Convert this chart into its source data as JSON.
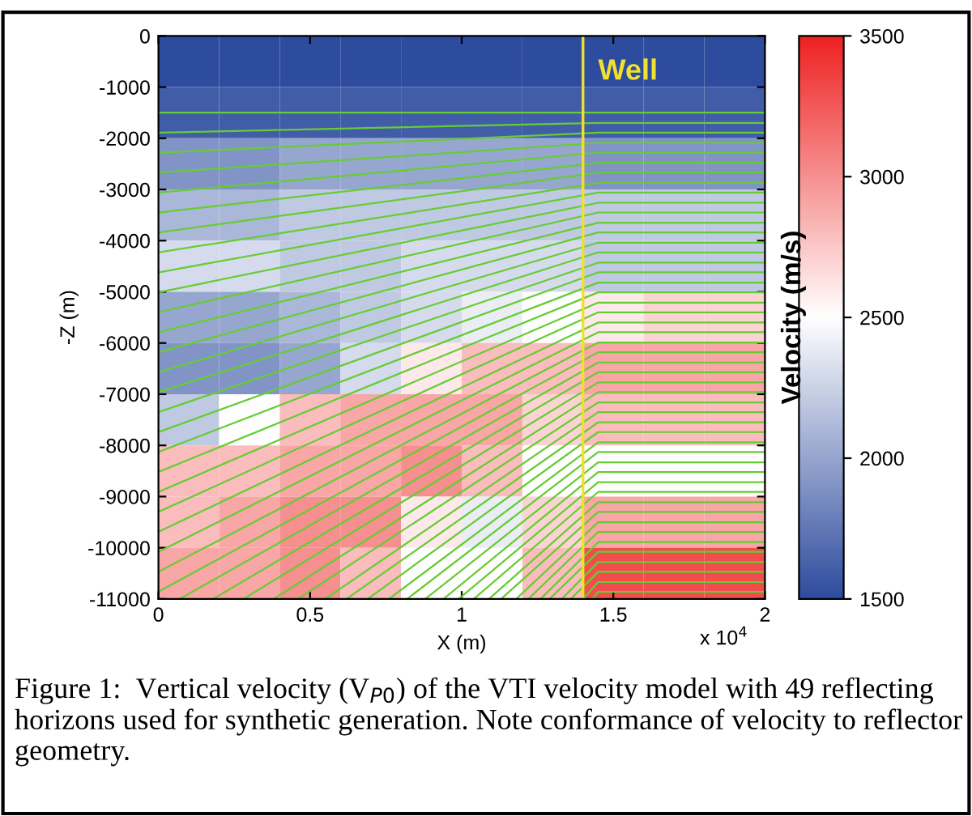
{
  "chart_data": {
    "type": "heatmap",
    "xlabel": "X (m)",
    "ylabel": "-Z (m)",
    "clabel": "Velocity (m/s)",
    "xlim": [
      0,
      2
    ],
    "ylim": [
      -11000,
      0
    ],
    "xticks": [
      0,
      0.5,
      1,
      1.5,
      2
    ],
    "yticks": [
      0,
      -1000,
      -2000,
      -3000,
      -4000,
      -5000,
      -6000,
      -7000,
      -8000,
      -9000,
      -10000,
      -11000
    ],
    "clim": [
      1500,
      3500
    ],
    "cticks": [
      1500,
      2000,
      2500,
      3000,
      3500
    ],
    "colors": [
      "#2e4c9e",
      "#ffffff",
      "#ee2222"
    ],
    "cells": [
      [
        1500,
        1500,
        1500,
        1500,
        1500,
        1500,
        1500,
        1500,
        1500,
        1500
      ],
      [
        1600,
        1600,
        1600,
        1600,
        1600,
        1600,
        1600,
        1600,
        1600,
        1600
      ],
      [
        1900,
        1900,
        2000,
        2000,
        2000,
        2000,
        2000,
        1900,
        1900,
        1900
      ],
      [
        2100,
        2100,
        2200,
        2200,
        2200,
        2200,
        2200,
        2200,
        2200,
        2200
      ],
      [
        2300,
        2300,
        2200,
        2200,
        2300,
        2300,
        2300,
        2200,
        2200,
        2200
      ],
      [
        2000,
        2000,
        2100,
        2200,
        2300,
        2400,
        2500,
        2600,
        2700,
        2700
      ],
      [
        1900,
        1900,
        2000,
        2300,
        2600,
        2800,
        2800,
        2900,
        2900,
        2900
      ],
      [
        2200,
        2500,
        2800,
        2900,
        2900,
        2900,
        2700,
        2800,
        2800,
        2800
      ],
      [
        2800,
        2800,
        2900,
        2900,
        3000,
        2800,
        2500,
        2500,
        2500,
        2500
      ],
      [
        2800,
        2900,
        3000,
        3000,
        2600,
        2400,
        2700,
        2900,
        2900,
        2900
      ],
      [
        2900,
        2900,
        3000,
        2800,
        2500,
        2500,
        2800,
        3300,
        3300,
        3300
      ]
    ],
    "ref_lines": [
      {
        "axis": "x",
        "value": 1.4,
        "label": "Well",
        "color": "#f0e030"
      }
    ],
    "annotations": [
      "x 10$^{4}$",
      "Figure 1:  Vertical velocity (V$_{P0}$) of the VTI velocity model with 49 reflecting horizons used for synthetic generation. Note conformance of velocity to reflector geometry."
    ],
    "series": [
      {
        "type": "line",
        "color": "#66cc33",
        "x": [
          0,
          1.45,
          2
        ],
        "values": [
          -1500,
          -1500,
          -1500
        ]
      },
      {
        "type": "line",
        "color": "#66cc33",
        "x": [
          0,
          1.45,
          2
        ],
        "values": [
          -1890,
          -1700,
          -1700
        ]
      },
      {
        "type": "line",
        "color": "#66cc33",
        "x": [
          0,
          1.45,
          2
        ],
        "values": [
          -2280,
          -1890,
          -1890
        ]
      },
      {
        "type": "line",
        "color": "#66cc33",
        "x": [
          0,
          1.45,
          2
        ],
        "values": [
          -2670,
          -2090,
          -2090
        ]
      },
      {
        "type": "line",
        "color": "#66cc33",
        "x": [
          0,
          1.45,
          2
        ],
        "values": [
          -3060,
          -2280,
          -2280
        ]
      },
      {
        "type": "line",
        "color": "#66cc33",
        "x": [
          0,
          1.45,
          2
        ],
        "values": [
          -3450,
          -2480,
          -2480
        ]
      },
      {
        "type": "line",
        "color": "#66cc33",
        "x": [
          0,
          1.45,
          2
        ],
        "values": [
          -3840,
          -2670,
          -2670
        ]
      },
      {
        "type": "line",
        "color": "#66cc33",
        "x": [
          0,
          1.45,
          2
        ],
        "values": [
          -4230,
          -2870,
          -2870
        ]
      },
      {
        "type": "line",
        "color": "#66cc33",
        "x": [
          0,
          1.45,
          2
        ],
        "values": [
          -4620,
          -3060,
          -3060
        ]
      },
      {
        "type": "line",
        "color": "#66cc33",
        "x": [
          0,
          1.45,
          2
        ],
        "values": [
          -5010,
          -3260,
          -3260
        ]
      },
      {
        "type": "line",
        "color": "#66cc33",
        "x": [
          0,
          1.45,
          2
        ],
        "values": [
          -5400,
          -3450,
          -3450
        ]
      },
      {
        "type": "line",
        "color": "#66cc33",
        "x": [
          0,
          1.45,
          2
        ],
        "values": [
          -5790,
          -3650,
          -3650
        ]
      },
      {
        "type": "line",
        "color": "#66cc33",
        "x": [
          0,
          1.45,
          2
        ],
        "values": [
          -6180,
          -3840,
          -3840
        ]
      },
      {
        "type": "line",
        "color": "#66cc33",
        "x": [
          0,
          1.45,
          2
        ],
        "values": [
          -6570,
          -4040,
          -4040
        ]
      },
      {
        "type": "line",
        "color": "#66cc33",
        "x": [
          0,
          1.45,
          2
        ],
        "values": [
          -6960,
          -4230,
          -4230
        ]
      },
      {
        "type": "line",
        "color": "#66cc33",
        "x": [
          0,
          1.45,
          2
        ],
        "values": [
          -7350,
          -4430,
          -4430
        ]
      },
      {
        "type": "line",
        "color": "#66cc33",
        "x": [
          0,
          1.45,
          2
        ],
        "values": [
          -7740,
          -4620,
          -4620
        ]
      },
      {
        "type": "line",
        "color": "#66cc33",
        "x": [
          0,
          1.45,
          2
        ],
        "values": [
          -8130,
          -4820,
          -4820
        ]
      },
      {
        "type": "line",
        "color": "#66cc33",
        "x": [
          0,
          1.45,
          2
        ],
        "values": [
          -8520,
          -5010,
          -5010
        ]
      },
      {
        "type": "line",
        "color": "#66cc33",
        "x": [
          0,
          1.45,
          2
        ],
        "values": [
          -8910,
          -5210,
          -5210
        ]
      },
      {
        "type": "line",
        "color": "#66cc33",
        "x": [
          0,
          1.45,
          2
        ],
        "values": [
          -9300,
          -5400,
          -5400
        ]
      },
      {
        "type": "line",
        "color": "#66cc33",
        "x": [
          0,
          1.45,
          2
        ],
        "values": [
          -9690,
          -5600,
          -5600
        ]
      },
      {
        "type": "line",
        "color": "#66cc33",
        "x": [
          0,
          1.45,
          2
        ],
        "values": [
          -10080,
          -5790,
          -5790
        ]
      },
      {
        "type": "line",
        "color": "#66cc33",
        "x": [
          0,
          1.45,
          2
        ],
        "values": [
          -10470,
          -5990,
          -5990
        ]
      },
      {
        "type": "line",
        "color": "#66cc33",
        "x": [
          0,
          1.45,
          2
        ],
        "values": [
          -10860,
          -6180,
          -6180
        ]
      },
      {
        "type": "line",
        "color": "#66cc33",
        "x": [
          0.07,
          1.45,
          2
        ],
        "values": [
          -11000,
          -6380,
          -6380
        ]
      },
      {
        "type": "line",
        "color": "#66cc33",
        "x": [
          0.18,
          1.45,
          2
        ],
        "values": [
          -11000,
          -6570,
          -6570
        ]
      },
      {
        "type": "line",
        "color": "#66cc33",
        "x": [
          0.28,
          1.45,
          2
        ],
        "values": [
          -11000,
          -6770,
          -6770
        ]
      },
      {
        "type": "line",
        "color": "#66cc33",
        "x": [
          0.38,
          1.45,
          2
        ],
        "values": [
          -11000,
          -6960,
          -6960
        ]
      },
      {
        "type": "line",
        "color": "#66cc33",
        "x": [
          0.46,
          1.45,
          2
        ],
        "values": [
          -11000,
          -7160,
          -7160
        ]
      },
      {
        "type": "line",
        "color": "#66cc33",
        "x": [
          0.55,
          1.45,
          2
        ],
        "values": [
          -11000,
          -7350,
          -7350
        ]
      },
      {
        "type": "line",
        "color": "#66cc33",
        "x": [
          0.62,
          1.45,
          2
        ],
        "values": [
          -11000,
          -7550,
          -7550
        ]
      },
      {
        "type": "line",
        "color": "#66cc33",
        "x": [
          0.69,
          1.45,
          2
        ],
        "values": [
          -11000,
          -7740,
          -7740
        ]
      },
      {
        "type": "line",
        "color": "#66cc33",
        "x": [
          0.76,
          1.45,
          2
        ],
        "values": [
          -11000,
          -7940,
          -7940
        ]
      },
      {
        "type": "line",
        "color": "#66cc33",
        "x": [
          0.82,
          1.45,
          2
        ],
        "values": [
          -11000,
          -8130,
          -8130
        ]
      },
      {
        "type": "line",
        "color": "#66cc33",
        "x": [
          0.88,
          1.45,
          2
        ],
        "values": [
          -11000,
          -8330,
          -8330
        ]
      },
      {
        "type": "line",
        "color": "#66cc33",
        "x": [
          0.94,
          1.45,
          2
        ],
        "values": [
          -11000,
          -8520,
          -8520
        ]
      },
      {
        "type": "line",
        "color": "#66cc33",
        "x": [
          0.99,
          1.45,
          2
        ],
        "values": [
          -11000,
          -8720,
          -8720
        ]
      },
      {
        "type": "line",
        "color": "#66cc33",
        "x": [
          1.04,
          1.45,
          2
        ],
        "values": [
          -11000,
          -8910,
          -8910
        ]
      },
      {
        "type": "line",
        "color": "#66cc33",
        "x": [
          1.09,
          1.45,
          2
        ],
        "values": [
          -11000,
          -9110,
          -9110
        ]
      },
      {
        "type": "line",
        "color": "#66cc33",
        "x": [
          1.13,
          1.45,
          2
        ],
        "values": [
          -11000,
          -9300,
          -9300
        ]
      },
      {
        "type": "line",
        "color": "#66cc33",
        "x": [
          1.18,
          1.45,
          2
        ],
        "values": [
          -11000,
          -9500,
          -9500
        ]
      },
      {
        "type": "line",
        "color": "#66cc33",
        "x": [
          1.22,
          1.45,
          2
        ],
        "values": [
          -11000,
          -9690,
          -9690
        ]
      },
      {
        "type": "line",
        "color": "#66cc33",
        "x": [
          1.26,
          1.45,
          2
        ],
        "values": [
          -11000,
          -9890,
          -9890
        ]
      },
      {
        "type": "line",
        "color": "#66cc33",
        "x": [
          1.29,
          1.45,
          2
        ],
        "values": [
          -11000,
          -10080,
          -10080
        ]
      },
      {
        "type": "line",
        "color": "#66cc33",
        "x": [
          1.33,
          1.45,
          2
        ],
        "values": [
          -11000,
          -10280,
          -10280
        ]
      },
      {
        "type": "line",
        "color": "#66cc33",
        "x": [
          1.36,
          1.45,
          2
        ],
        "values": [
          -11000,
          -10470,
          -10470
        ]
      },
      {
        "type": "line",
        "color": "#66cc33",
        "x": [
          1.4,
          1.45,
          2
        ],
        "values": [
          -11000,
          -10670,
          -10670
        ]
      },
      {
        "type": "line",
        "color": "#66cc33",
        "x": [
          1.43,
          1.45,
          2
        ],
        "values": [
          -11000,
          -10860,
          -10860
        ]
      }
    ]
  }
}
